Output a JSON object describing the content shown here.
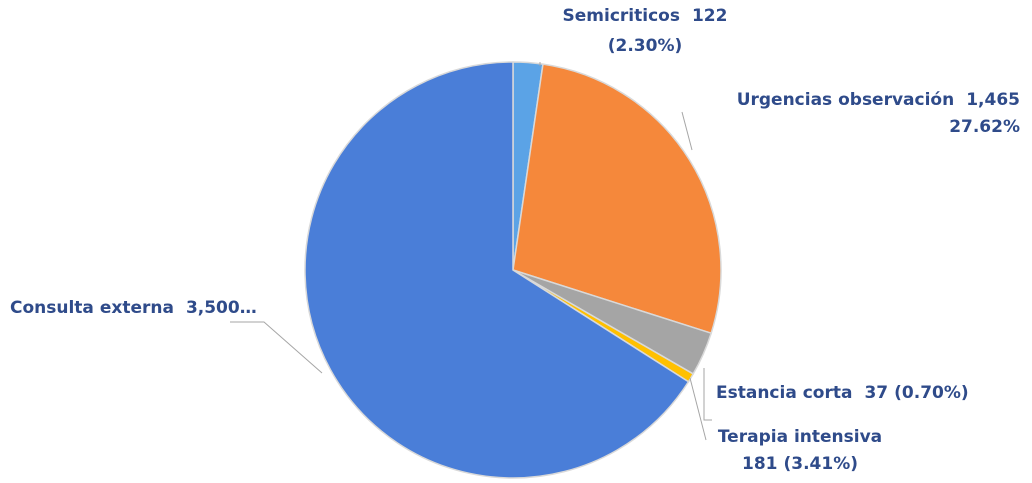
{
  "chart_data": {
    "type": "pie",
    "categories": [
      "Semicriticos",
      "Urgencias observación",
      "Terapia intensiva",
      "Estancia corta",
      "Consulta externa"
    ],
    "values": [
      122,
      1465,
      181,
      37,
      3500
    ],
    "value_labels": [
      "122",
      "1,465",
      "181",
      "37",
      "3,500…"
    ],
    "percent_labels": [
      "(2.30%)",
      "27.62%",
      "(3.41%)",
      "(0.70%)",
      null
    ],
    "colors": [
      "#5ba3e6",
      "#f5883b",
      "#a5a5a5",
      "#ffc000",
      "#4a7ed8"
    ]
  }
}
